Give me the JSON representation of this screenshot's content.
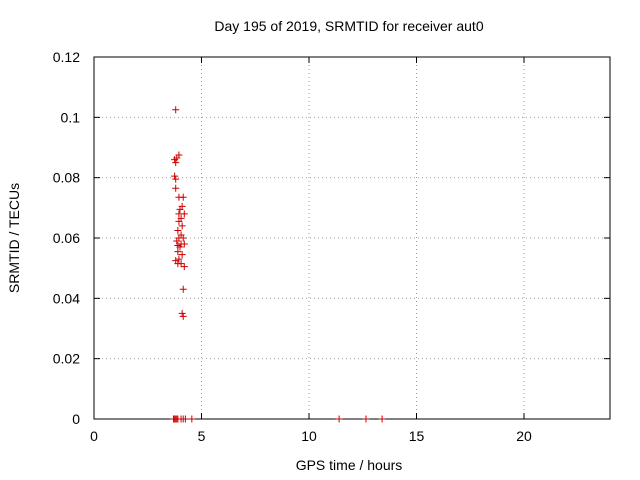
{
  "chart_data": {
    "type": "scatter",
    "title": "Day 195 of 2019, SRMTID for receiver aut0",
    "xlabel": "GPS time / hours",
    "ylabel": "SRMTID / TECUs",
    "xlim": [
      0,
      24
    ],
    "ylim": [
      0,
      0.12
    ],
    "x_ticks": [
      0,
      5,
      10,
      15,
      20
    ],
    "x_tick_labels": [
      "0",
      "5",
      "10",
      "15",
      "20"
    ],
    "y_ticks": [
      0,
      0.02,
      0.04,
      0.06,
      0.08,
      0.1,
      0.12
    ],
    "y_tick_labels": [
      "0",
      "0.02",
      "0.04",
      "0.06",
      "0.08",
      "0.1",
      "0.12"
    ],
    "grid": true,
    "marker": "+",
    "color": "#cc0000",
    "series": [
      {
        "name": "aut0",
        "points": [
          [
            3.8,
            0.1025
          ],
          [
            3.95,
            0.0875
          ],
          [
            3.85,
            0.0865
          ],
          [
            3.75,
            0.086
          ],
          [
            3.8,
            0.085
          ],
          [
            3.75,
            0.0805
          ],
          [
            3.8,
            0.0795
          ],
          [
            3.8,
            0.0765
          ],
          [
            3.95,
            0.0735
          ],
          [
            4.15,
            0.0735
          ],
          [
            4.1,
            0.0705
          ],
          [
            4.0,
            0.0695
          ],
          [
            3.95,
            0.068
          ],
          [
            4.2,
            0.068
          ],
          [
            4.05,
            0.0665
          ],
          [
            3.95,
            0.0655
          ],
          [
            4.1,
            0.064
          ],
          [
            3.9,
            0.0625
          ],
          [
            4.05,
            0.061
          ],
          [
            3.95,
            0.06
          ],
          [
            4.15,
            0.06
          ],
          [
            3.85,
            0.059
          ],
          [
            4.05,
            0.058
          ],
          [
            4.2,
            0.058
          ],
          [
            3.9,
            0.0575
          ],
          [
            4.0,
            0.057
          ],
          [
            3.9,
            0.0555
          ],
          [
            4.1,
            0.0545
          ],
          [
            3.95,
            0.053
          ],
          [
            3.8,
            0.0525
          ],
          [
            3.9,
            0.0515
          ],
          [
            4.05,
            0.0515
          ],
          [
            4.2,
            0.0505
          ],
          [
            4.15,
            0.043
          ],
          [
            4.1,
            0.035
          ],
          [
            4.15,
            0.034
          ],
          [
            3.7,
            0.0
          ],
          [
            3.75,
            0.0
          ],
          [
            3.8,
            0.0
          ],
          [
            3.85,
            0.0
          ],
          [
            3.9,
            0.0
          ],
          [
            4.05,
            0.0
          ],
          [
            4.15,
            0.0
          ],
          [
            4.25,
            0.0
          ],
          [
            4.55,
            0.0
          ],
          [
            11.4,
            0.0
          ],
          [
            12.65,
            0.0
          ],
          [
            13.4,
            0.0
          ]
        ]
      }
    ]
  }
}
